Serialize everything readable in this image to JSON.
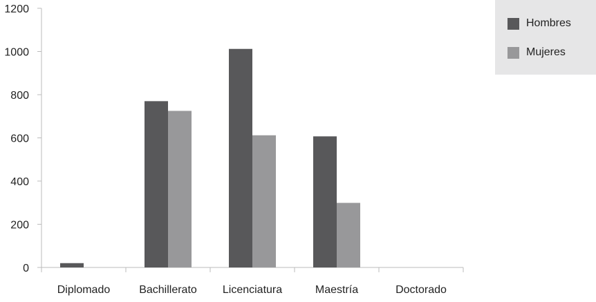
{
  "chart_data": {
    "type": "bar",
    "categories": [
      "Diplomado",
      "Bachillerato",
      "Licenciatura",
      "Maestría",
      "Doctorado"
    ],
    "series": [
      {
        "name": "Hombres",
        "values": [
          20,
          770,
          1012,
          607,
          0
        ],
        "color": "#58585a"
      },
      {
        "name": "Mujeres",
        "values": [
          0,
          725,
          612,
          299,
          0
        ],
        "color": "#98989a"
      }
    ],
    "ylim": [
      0,
      1200
    ],
    "yticks": [
      0,
      200,
      400,
      600,
      800,
      1000,
      1200
    ],
    "ytick_labels": [
      "0",
      "200",
      "400",
      "600",
      "800",
      "1000",
      "1200"
    ],
    "grid": false,
    "legend_position": "top-right",
    "axis_color": "#bbbbbb"
  }
}
